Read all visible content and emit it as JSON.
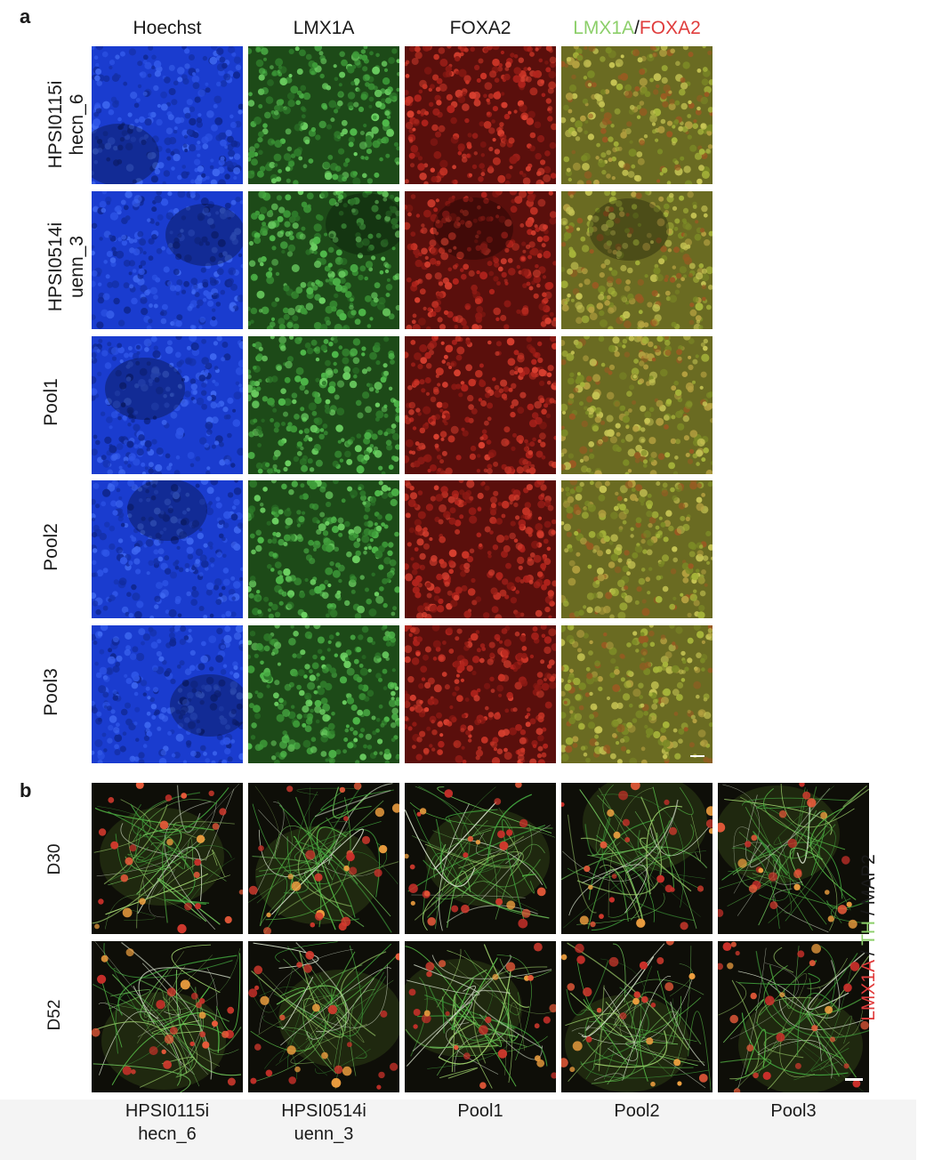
{
  "panel_a": {
    "letter": "a",
    "columns": [
      "Hoechst",
      "LMX1A",
      "FOXA2"
    ],
    "merge_column": {
      "part1": "LMX1A",
      "sep": "/",
      "part2": "FOXA2"
    },
    "rows": [
      {
        "line1": "HPSI0115i",
        "line2": "hecn_6"
      },
      {
        "line1": "HPSI0514i",
        "line2": "uenn_3"
      },
      {
        "line1": "Pool1",
        "line2": ""
      },
      {
        "line1": "Pool2",
        "line2": ""
      },
      {
        "line1": "Pool3",
        "line2": ""
      }
    ]
  },
  "panel_b": {
    "letter": "b",
    "rows": [
      "D30",
      "D52"
    ],
    "columns": [
      {
        "line1": "HPSI0115i",
        "line2": "hecn_6"
      },
      {
        "line1": "HPSI0514i",
        "line2": "uenn_3"
      },
      {
        "line1": "Pool1",
        "line2": ""
      },
      {
        "line1": "Pool2",
        "line2": ""
      },
      {
        "line1": "Pool3",
        "line2": ""
      }
    ],
    "legend": {
      "m1": "LMX1A",
      "s1": " / ",
      "m2": "TH",
      "s2": " / ",
      "m3": "MAP2"
    }
  },
  "colors": {
    "hoechst": "#1a3ccf",
    "lmx1a_green": "#4fb84a",
    "foxa2_red": "#b0231c",
    "merge_bg": "#6a6b22",
    "legend_red": "#e03c3c",
    "legend_green": "#8ccf6a",
    "legend_black": "#1a1a1a",
    "panel_b_bg": "#0e0e08"
  }
}
